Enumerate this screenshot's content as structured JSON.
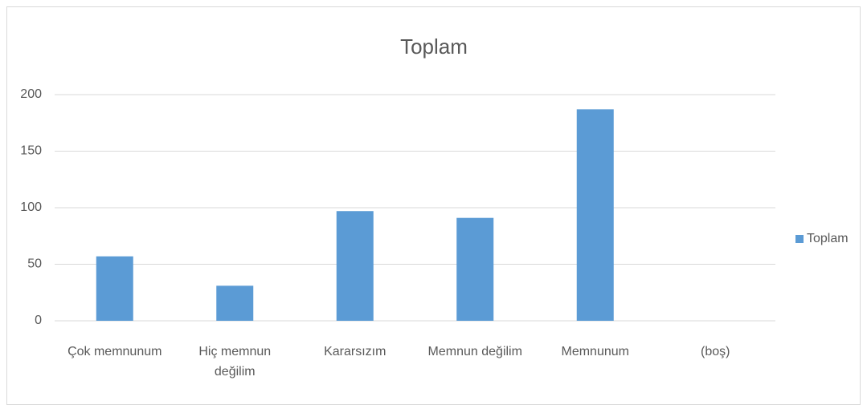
{
  "chart_data": {
    "type": "bar",
    "title": "Toplam",
    "categories": [
      "Çok memnunum",
      "Hiç memnun değilim",
      "Kararsızım",
      "Memnun değilim",
      "Memnunum",
      "(boş)"
    ],
    "series": [
      {
        "name": "Toplam",
        "color": "#5b9bd5",
        "values": [
          57,
          31,
          97,
          91,
          187,
          null
        ]
      }
    ],
    "ylim": [
      0,
      200
    ],
    "yticks": [
      0,
      50,
      100,
      150,
      200
    ],
    "grid": true,
    "legend": "right"
  }
}
